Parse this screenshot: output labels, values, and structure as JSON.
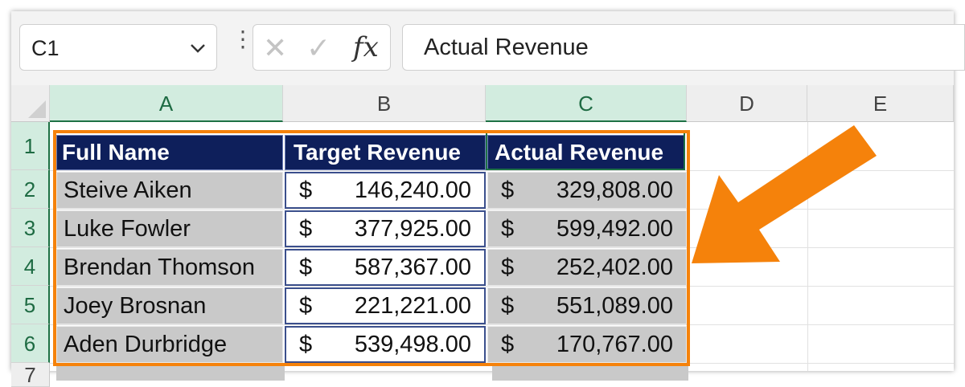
{
  "formula_bar": {
    "name_box": "C1",
    "cancel_symbol": "✕",
    "enter_symbol": "✓",
    "fx_label": "fx",
    "formula_value": "Actual Revenue"
  },
  "columns": [
    "A",
    "B",
    "C",
    "D",
    "E"
  ],
  "rows": [
    "1",
    "2",
    "3",
    "4",
    "5",
    "6",
    "7"
  ],
  "table": {
    "headers": [
      "Full Name",
      "Target Revenue",
      "Actual Revenue"
    ],
    "currency_symbol": "$",
    "records": [
      {
        "name": "Steive Aiken",
        "target": "146,240.00",
        "actual": "329,808.00"
      },
      {
        "name": "Luke Fowler",
        "target": "377,925.00",
        "actual": "599,492.00"
      },
      {
        "name": "Brendan Thomson",
        "target": "587,367.00",
        "actual": "252,402.00"
      },
      {
        "name": "Joey Brosnan",
        "target": "221,221.00",
        "actual": "551,089.00"
      },
      {
        "name": "Aden Durbridge",
        "target": "539,498.00",
        "actual": "170,767.00"
      }
    ]
  },
  "colors": {
    "header_fill": "#0e1f5b",
    "selection_outline": "#f5820b",
    "arrow": "#f5820b",
    "selected_header": "#d2ecdf"
  }
}
